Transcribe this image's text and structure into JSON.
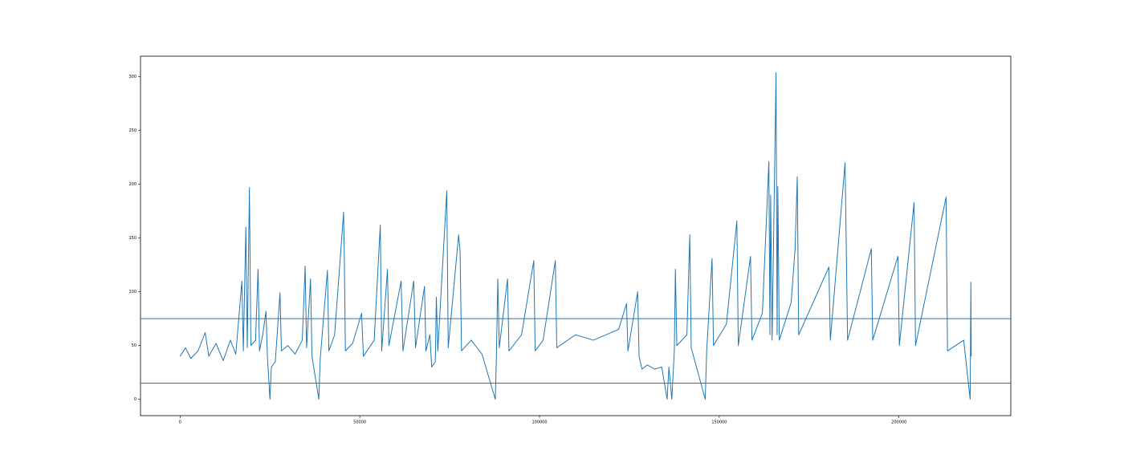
{
  "chart_data": {
    "type": "line",
    "color": "#1f77b4",
    "x": [
      0,
      1500,
      3000,
      5000,
      7000,
      8000,
      10000,
      12000,
      14000,
      15500,
      17200,
      17600,
      18300,
      18700,
      19300,
      19700,
      21000,
      21700,
      22100,
      23000,
      23900,
      24300,
      25000,
      25400,
      26500,
      27800,
      28200,
      30000,
      32000,
      34000,
      34800,
      35200,
      36300,
      36700,
      38600,
      39000,
      41000,
      41400,
      43000,
      45500,
      45700,
      46000,
      48000,
      50500,
      51000,
      54000,
      55700,
      56100,
      57700,
      58100,
      61500,
      62000,
      65000,
      65500,
      68000,
      68400,
      69500,
      70000,
      71000,
      71300,
      71700,
      74200,
      74600,
      77500,
      77900,
      78300,
      81000,
      84000,
      87700,
      88000,
      88400,
      88800,
      91100,
      91500,
      95000,
      98400,
      98800,
      101000,
      104400,
      104800,
      110000,
      115000,
      122000,
      124200,
      124600,
      127300,
      127700,
      128500,
      130000,
      132000,
      134000,
      135500,
      136000,
      136800,
      137500,
      137800,
      138200,
      141000,
      141800,
      142200,
      146100,
      146500,
      148000,
      148400,
      152000,
      154900,
      155300,
      158700,
      159100,
      162000,
      163800,
      164100,
      164300,
      164700,
      165800,
      166100,
      166300,
      166700,
      170000,
      171100,
      171700,
      172100,
      180500,
      180900,
      185000,
      185300,
      185700,
      192300,
      192700,
      199700,
      200100,
      204200,
      204600,
      213100,
      213500,
      218000,
      219800,
      220000,
      220100
    ],
    "values": [
      40,
      48,
      38,
      45,
      62,
      40,
      52,
      36,
      55,
      42,
      110,
      45,
      160,
      48,
      197,
      50,
      55,
      121,
      45,
      60,
      82,
      40,
      0,
      30,
      35,
      99,
      45,
      50,
      42,
      55,
      124,
      48,
      112,
      40,
      0,
      38,
      120,
      45,
      60,
      174,
      129,
      45,
      52,
      80,
      40,
      55,
      162,
      45,
      121,
      50,
      110,
      45,
      110,
      48,
      105,
      45,
      60,
      30,
      35,
      95,
      45,
      194,
      48,
      153,
      138,
      45,
      55,
      42,
      0,
      40,
      112,
      48,
      112,
      45,
      60,
      129,
      45,
      55,
      129,
      48,
      60,
      55,
      65,
      89,
      45,
      100,
      40,
      28,
      32,
      28,
      30,
      0,
      30,
      0,
      45,
      121,
      50,
      60,
      153,
      48,
      0,
      45,
      131,
      50,
      70,
      166,
      50,
      133,
      55,
      80,
      221,
      60,
      190,
      55,
      304,
      60,
      198,
      55,
      90,
      140,
      207,
      60,
      123,
      55,
      220,
      150,
      55,
      140,
      55,
      133,
      50,
      183,
      50,
      188,
      45,
      55,
      0,
      109,
      40
    ],
    "hlines": [
      75,
      15
    ],
    "xlim": [
      -11005,
      231105
    ],
    "ylim": [
      -15.2,
      319.2
    ],
    "xticks": [
      0,
      50000,
      100000,
      150000,
      200000
    ],
    "yticks": [
      0,
      50,
      100,
      150,
      200,
      250,
      300
    ]
  }
}
